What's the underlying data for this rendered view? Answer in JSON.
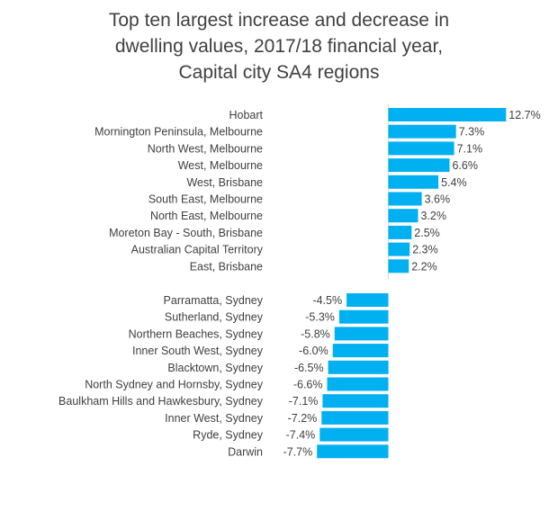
{
  "chart_data": {
    "type": "bar",
    "orientation": "horizontal",
    "title_lines": [
      "Top ten largest increase and decrease in",
      "dwelling values, 2017/18 financial year,",
      "Capital city SA4 regions"
    ],
    "bar_color": "#00B0F0",
    "xlim": [
      -7.7,
      12.7
    ],
    "grid": false,
    "legend": "none",
    "groups": [
      {
        "categories": [
          "Hobart",
          "Mornington Peninsula, Melbourne",
          "North West, Melbourne",
          "West, Melbourne",
          "West, Brisbane",
          "South East, Melbourne",
          "North East, Melbourne",
          "Moreton Bay - South, Brisbane",
          "Australian Capital Territory",
          "East, Brisbane"
        ],
        "values": [
          12.7,
          7.3,
          7.1,
          6.6,
          5.4,
          3.6,
          3.2,
          2.5,
          2.3,
          2.2
        ],
        "labels": [
          "12.7%",
          "7.3%",
          "7.1%",
          "6.6%",
          "5.4%",
          "3.6%",
          "3.2%",
          "2.5%",
          "2.3%",
          "2.2%"
        ]
      },
      {
        "categories": [
          "Parramatta, Sydney",
          "Sutherland, Sydney",
          "Northern Beaches, Sydney",
          "Inner South West, Sydney",
          "Blacktown, Sydney",
          "North Sydney and Hornsby, Sydney",
          "Baulkham Hills and Hawkesbury, Sydney",
          "Inner West, Sydney",
          "Ryde, Sydney",
          "Darwin"
        ],
        "values": [
          -4.5,
          -5.3,
          -5.8,
          -6.0,
          -6.5,
          -6.6,
          -7.1,
          -7.2,
          -7.4,
          -7.7
        ],
        "labels": [
          "-4.5%",
          "-5.3%",
          "-5.8%",
          "-6.0%",
          "-6.5%",
          "-6.6%",
          "-7.1%",
          "-7.2%",
          "-7.4%",
          "-7.7%"
        ]
      }
    ]
  }
}
